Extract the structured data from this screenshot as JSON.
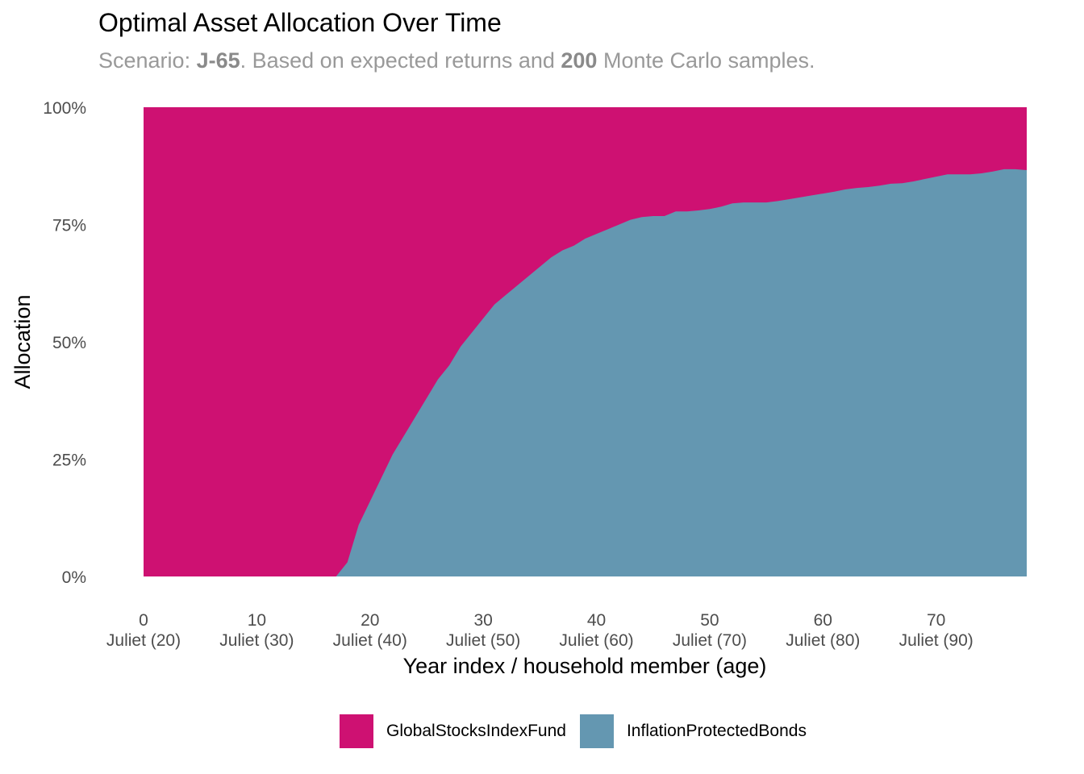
{
  "title": "Optimal Asset Allocation Over Time",
  "subtitle": {
    "prefix": "Scenario: ",
    "scenario": "J-65",
    "middle": ". Based on expected returns and ",
    "samples": "200",
    "suffix": " Monte Carlo samples."
  },
  "chart_data": {
    "type": "area",
    "stacked": "fill",
    "title": "Optimal Asset Allocation Over Time",
    "xlabel": "Year index / household member (age)",
    "ylabel": "Allocation",
    "xlim": [
      0,
      78
    ],
    "ylim": [
      0,
      1
    ],
    "x_ticks": [
      {
        "value": 0,
        "label": "0",
        "sub": "Juliet (20)"
      },
      {
        "value": 10,
        "label": "10",
        "sub": "Juliet (30)"
      },
      {
        "value": 20,
        "label": "20",
        "sub": "Juliet (40)"
      },
      {
        "value": 30,
        "label": "30",
        "sub": "Juliet (50)"
      },
      {
        "value": 40,
        "label": "40",
        "sub": "Juliet (60)"
      },
      {
        "value": 50,
        "label": "50",
        "sub": "Juliet (70)"
      },
      {
        "value": 60,
        "label": "60",
        "sub": "Juliet (80)"
      },
      {
        "value": 70,
        "label": "70",
        "sub": "Juliet (90)"
      }
    ],
    "y_ticks": [
      {
        "value": 0,
        "label": "0%"
      },
      {
        "value": 0.25,
        "label": "25%"
      },
      {
        "value": 0.5,
        "label": "50%"
      },
      {
        "value": 0.75,
        "label": "75%"
      },
      {
        "value": 1,
        "label": "100%"
      }
    ],
    "grid": false,
    "legend_position": "bottom",
    "x": [
      0,
      1,
      2,
      3,
      4,
      5,
      6,
      7,
      8,
      9,
      10,
      11,
      12,
      13,
      14,
      15,
      16,
      17,
      18,
      19,
      20,
      21,
      22,
      23,
      24,
      25,
      26,
      27,
      28,
      29,
      30,
      31,
      32,
      33,
      34,
      35,
      36,
      37,
      38,
      39,
      40,
      41,
      42,
      43,
      44,
      45,
      46,
      47,
      48,
      49,
      50,
      51,
      52,
      53,
      54,
      55,
      56,
      57,
      58,
      59,
      60,
      61,
      62,
      63,
      64,
      65,
      66,
      67,
      68,
      69,
      70,
      71,
      72,
      73,
      74,
      75,
      76,
      77,
      78
    ],
    "series": [
      {
        "name": "InflationProtectedBonds",
        "color": "#6497B1",
        "values": [
          0,
          0,
          0,
          0,
          0,
          0,
          0,
          0,
          0,
          0,
          0,
          0,
          0,
          0,
          0,
          0,
          0,
          0,
          0.03,
          0.11,
          0.16,
          0.21,
          0.26,
          0.3,
          0.34,
          0.38,
          0.42,
          0.45,
          0.49,
          0.52,
          0.55,
          0.58,
          0.6,
          0.62,
          0.64,
          0.66,
          0.68,
          0.695,
          0.705,
          0.72,
          0.73,
          0.74,
          0.75,
          0.76,
          0.766,
          0.768,
          0.768,
          0.778,
          0.778,
          0.78,
          0.783,
          0.788,
          0.795,
          0.797,
          0.797,
          0.797,
          0.8,
          0.804,
          0.808,
          0.812,
          0.816,
          0.82,
          0.825,
          0.828,
          0.83,
          0.833,
          0.837,
          0.838,
          0.842,
          0.847,
          0.852,
          0.857,
          0.857,
          0.857,
          0.859,
          0.863,
          0.868,
          0.868,
          0.866
        ]
      },
      {
        "name": "GlobalStocksIndexFund",
        "color": "#CE1172",
        "values": "remainder to 100%"
      }
    ]
  }
}
